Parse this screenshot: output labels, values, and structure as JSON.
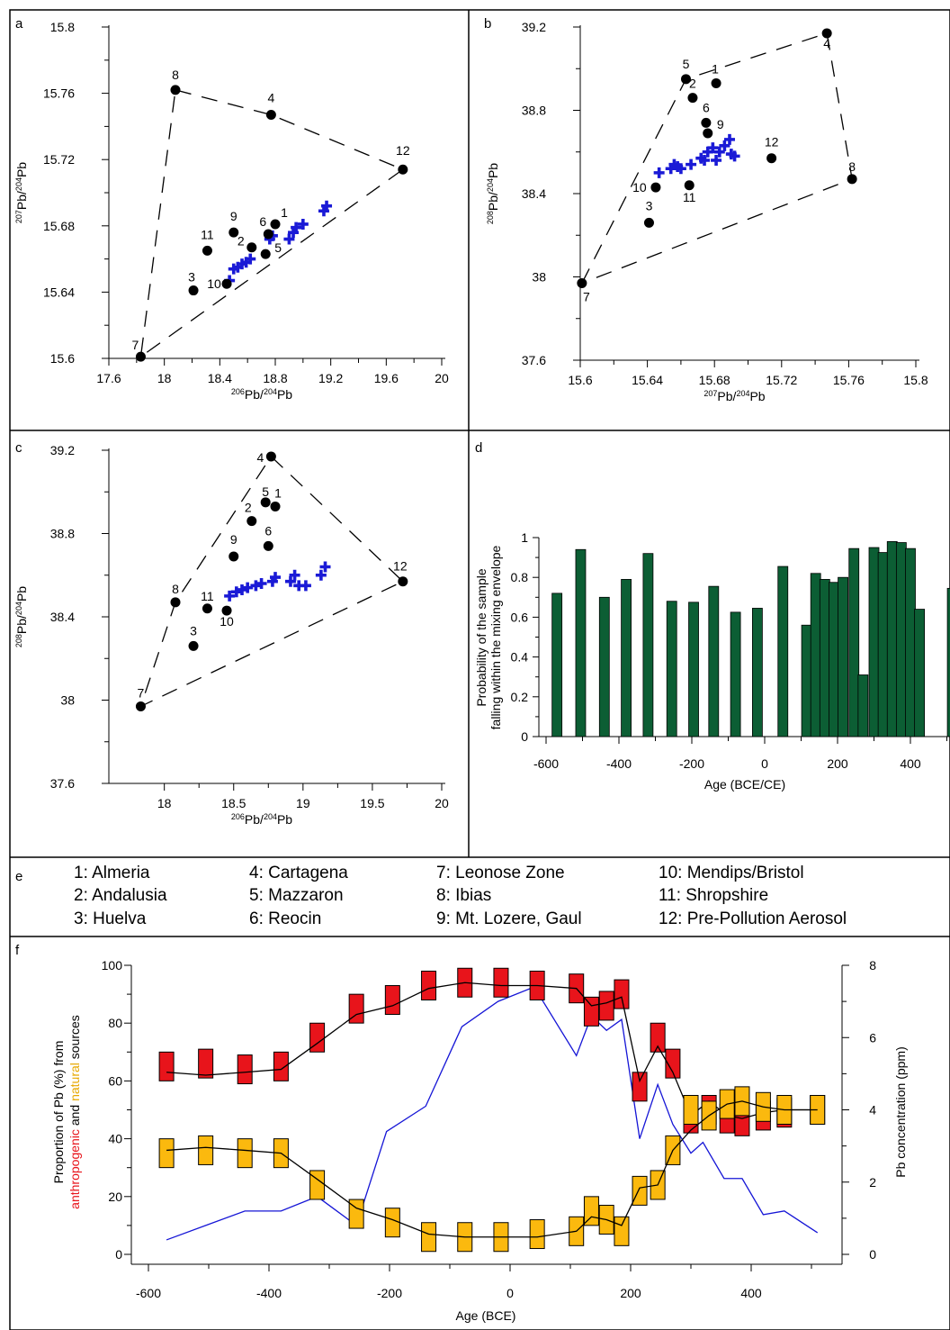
{
  "chart_data": [
    {
      "panel": "a",
      "type": "scatter",
      "xlabel": "206Pb/204Pb",
      "ylabel": "207Pb/204Pb",
      "xlim": [
        17.6,
        20
      ],
      "ylim": [
        15.6,
        15.8
      ],
      "xticks": [
        "17.6",
        "18",
        "18.4",
        "18.8",
        "19.2",
        "19.6",
        "20"
      ],
      "yticks": [
        "15.6",
        "15.64",
        "15.68",
        "15.72",
        "15.76",
        "15.8"
      ],
      "sources": [
        {
          "label": "1",
          "x": 18.8,
          "y": 15.681
        },
        {
          "label": "2",
          "x": 18.63,
          "y": 15.667
        },
        {
          "label": "3",
          "x": 18.21,
          "y": 15.641
        },
        {
          "label": "4",
          "x": 18.77,
          "y": 15.747
        },
        {
          "label": "5",
          "x": 18.73,
          "y": 15.663
        },
        {
          "label": "6",
          "x": 18.75,
          "y": 15.675
        },
        {
          "label": "7",
          "x": 17.83,
          "y": 15.601
        },
        {
          "label": "8",
          "x": 18.08,
          "y": 15.762
        },
        {
          "label": "9",
          "x": 18.5,
          "y": 15.676
        },
        {
          "label": "10",
          "x": 18.45,
          "y": 15.645
        },
        {
          "label": "11",
          "x": 18.31,
          "y": 15.665
        },
        {
          "label": "12",
          "x": 19.72,
          "y": 15.714
        }
      ],
      "samples": [
        {
          "x": 18.47,
          "y": 15.647
        },
        {
          "x": 18.5,
          "y": 15.654
        },
        {
          "x": 18.53,
          "y": 15.655
        },
        {
          "x": 18.56,
          "y": 15.657
        },
        {
          "x": 18.59,
          "y": 15.658
        },
        {
          "x": 18.62,
          "y": 15.66
        },
        {
          "x": 18.76,
          "y": 15.672
        },
        {
          "x": 18.78,
          "y": 15.674
        },
        {
          "x": 18.9,
          "y": 15.672
        },
        {
          "x": 18.93,
          "y": 15.676
        },
        {
          "x": 18.95,
          "y": 15.679
        },
        {
          "x": 19.0,
          "y": 15.681
        },
        {
          "x": 19.15,
          "y": 15.689
        },
        {
          "x": 19.17,
          "y": 15.692
        }
      ],
      "envelope": [
        "8",
        "4",
        "12",
        "7"
      ]
    },
    {
      "panel": "b",
      "type": "scatter",
      "xlabel": "207Pb/204Pb",
      "ylabel": "208Pb/204Pb",
      "xlim": [
        15.6,
        15.8
      ],
      "ylim": [
        37.6,
        39.2
      ],
      "xticks": [
        "15.6",
        "15.64",
        "15.68",
        "15.72",
        "15.76",
        "15.8"
      ],
      "yticks": [
        "37.6",
        "38",
        "38.4",
        "38.8",
        "39.2"
      ],
      "sources": [
        {
          "label": "1",
          "x": 15.681,
          "y": 38.93
        },
        {
          "label": "2",
          "x": 15.667,
          "y": 38.86
        },
        {
          "label": "3",
          "x": 15.641,
          "y": 38.26
        },
        {
          "label": "4",
          "x": 15.747,
          "y": 39.17
        },
        {
          "label": "5",
          "x": 15.663,
          "y": 38.95
        },
        {
          "label": "6",
          "x": 15.675,
          "y": 38.74
        },
        {
          "label": "7",
          "x": 15.601,
          "y": 37.97
        },
        {
          "label": "8",
          "x": 15.762,
          "y": 38.47
        },
        {
          "label": "9",
          "x": 15.676,
          "y": 38.69
        },
        {
          "label": "10",
          "x": 15.645,
          "y": 38.43
        },
        {
          "label": "11",
          "x": 15.665,
          "y": 38.44
        },
        {
          "label": "12",
          "x": 15.714,
          "y": 38.57
        }
      ],
      "samples": [
        {
          "x": 15.647,
          "y": 38.5
        },
        {
          "x": 15.654,
          "y": 38.52
        },
        {
          "x": 15.656,
          "y": 38.54
        },
        {
          "x": 15.658,
          "y": 38.53
        },
        {
          "x": 15.66,
          "y": 38.52
        },
        {
          "x": 15.666,
          "y": 38.54
        },
        {
          "x": 15.672,
          "y": 38.57
        },
        {
          "x": 15.674,
          "y": 38.56
        },
        {
          "x": 15.676,
          "y": 38.6
        },
        {
          "x": 15.679,
          "y": 38.62
        },
        {
          "x": 15.681,
          "y": 38.56
        },
        {
          "x": 15.683,
          "y": 38.6
        },
        {
          "x": 15.686,
          "y": 38.63
        },
        {
          "x": 15.689,
          "y": 38.66
        },
        {
          "x": 15.69,
          "y": 38.59
        },
        {
          "x": 15.692,
          "y": 38.58
        }
      ],
      "envelope": [
        "7",
        "5",
        "4",
        "8"
      ]
    },
    {
      "panel": "c",
      "type": "scatter",
      "xlabel": "206Pb/204Pb",
      "ylabel": "208Pb/204Pb",
      "xlim": [
        17.6,
        20
      ],
      "ylim": [
        37.6,
        39.2
      ],
      "xticks": [
        "18",
        "18.5",
        "19",
        "19.5",
        "20"
      ],
      "yticks": [
        "37.6",
        "38",
        "38.4",
        "38.8",
        "39.2"
      ],
      "sources": [
        {
          "label": "1",
          "x": 18.8,
          "y": 38.93
        },
        {
          "label": "2",
          "x": 18.63,
          "y": 38.86
        },
        {
          "label": "3",
          "x": 18.21,
          "y": 38.26
        },
        {
          "label": "4",
          "x": 18.77,
          "y": 39.17
        },
        {
          "label": "5",
          "x": 18.73,
          "y": 38.95
        },
        {
          "label": "6",
          "x": 18.75,
          "y": 38.74
        },
        {
          "label": "7",
          "x": 17.83,
          "y": 37.97
        },
        {
          "label": "8",
          "x": 18.08,
          "y": 38.47
        },
        {
          "label": "9",
          "x": 18.5,
          "y": 38.69
        },
        {
          "label": "10",
          "x": 18.45,
          "y": 38.43
        },
        {
          "label": "11",
          "x": 18.31,
          "y": 38.44
        },
        {
          "label": "12",
          "x": 19.72,
          "y": 38.57
        }
      ],
      "samples": [
        {
          "x": 18.47,
          "y": 38.5
        },
        {
          "x": 18.52,
          "y": 38.52
        },
        {
          "x": 18.56,
          "y": 38.53
        },
        {
          "x": 18.6,
          "y": 38.54
        },
        {
          "x": 18.66,
          "y": 38.55
        },
        {
          "x": 18.7,
          "y": 38.56
        },
        {
          "x": 18.78,
          "y": 38.57
        },
        {
          "x": 18.8,
          "y": 38.59
        },
        {
          "x": 18.91,
          "y": 38.57
        },
        {
          "x": 18.94,
          "y": 38.6
        },
        {
          "x": 18.97,
          "y": 38.55
        },
        {
          "x": 19.02,
          "y": 38.55
        },
        {
          "x": 19.13,
          "y": 38.6
        },
        {
          "x": 19.16,
          "y": 38.64
        }
      ],
      "envelope": [
        "4",
        "12",
        "7",
        "8"
      ]
    },
    {
      "panel": "d",
      "type": "bar",
      "xlabel": "Age (BCE/CE)",
      "ylabel": "Probability of the sample falling within the mixing envelope",
      "xlim": [
        -620,
        520
      ],
      "ylim": [
        0,
        1
      ],
      "xticks": [
        "-600",
        "-400",
        "-200",
        "0",
        "200",
        "400"
      ],
      "yticks": [
        "0",
        "0.2",
        "0.4",
        "0.6",
        "0.8",
        "1"
      ],
      "x": [
        -570,
        -505,
        -440,
        -380,
        -320,
        -255,
        -195,
        -140,
        -80,
        -20,
        50,
        115,
        140,
        165,
        190,
        215,
        245,
        270,
        300,
        325,
        350,
        375,
        400,
        425,
        515
      ],
      "values": [
        0.72,
        0.94,
        0.7,
        0.79,
        0.92,
        0.68,
        0.675,
        0.755,
        0.625,
        0.645,
        0.855,
        0.56,
        0.82,
        0.79,
        0.775,
        0.8,
        0.945,
        0.31,
        0.95,
        0.925,
        0.98,
        0.975,
        0.945,
        0.64,
        0.745
      ]
    },
    {
      "panel": "f",
      "type": "line",
      "xlabel": "Age (BCE)",
      "ylabel_left": [
        "Proportion of Pb (%) from",
        "anthropogenic",
        "and",
        "natural",
        "sources"
      ],
      "ylabel_right": "Pb concentration (ppm)",
      "xlim": [
        -620,
        540
      ],
      "ylim_left": [
        0,
        100
      ],
      "ylim_right": [
        0,
        8
      ],
      "xticks": [
        "-600",
        "-400",
        "-200",
        "0",
        "200",
        "400"
      ],
      "yticks_left": [
        "0",
        "20",
        "40",
        "60",
        "80",
        "100"
      ],
      "yticks_right": [
        "0",
        "2",
        "4",
        "6",
        "8"
      ],
      "x": [
        -570,
        -505,
        -440,
        -380,
        -320,
        -255,
        -195,
        -135,
        -75,
        -15,
        45,
        110,
        135,
        160,
        185,
        215,
        245,
        270,
        300,
        330,
        360,
        385,
        420,
        455,
        510
      ],
      "series": [
        {
          "name": "anthropogenic",
          "color": "#e8141b",
          "values": [
            65,
            66,
            64,
            65,
            75,
            85,
            88,
            93,
            94,
            94,
            93,
            92,
            84,
            86,
            90,
            58,
            75,
            66,
            47,
            50,
            47,
            46,
            48,
            49,
            50
          ],
          "line": [
            63,
            62,
            63,
            64,
            73,
            83,
            86,
            92,
            94,
            93,
            93,
            92,
            86,
            87,
            89,
            60,
            72,
            63,
            48,
            53,
            48,
            47,
            49,
            50,
            50
          ]
        },
        {
          "name": "natural",
          "color": "#fbb90e",
          "values": [
            35,
            36,
            35,
            35,
            24,
            14,
            11,
            6,
            6,
            6,
            7,
            8,
            15,
            12,
            8,
            22,
            24,
            36,
            50,
            48,
            52,
            53,
            51,
            50,
            50
          ],
          "line": [
            36,
            37,
            36,
            35,
            26,
            16,
            12,
            7,
            6,
            6,
            6,
            8,
            13,
            12,
            10,
            23,
            24,
            36,
            43,
            48,
            52,
            53,
            51,
            50,
            50
          ]
        },
        {
          "name": "Pb concentration (ppm)",
          "color": "#1515d6",
          "x": [
            -570,
            -505,
            -440,
            -380,
            -320,
            -255,
            -205,
            -140,
            -80,
            -20,
            40,
            110,
            135,
            160,
            185,
            215,
            245,
            270,
            300,
            320,
            355,
            385,
            420,
            455,
            510
          ],
          "values": [
            0.4,
            0.8,
            1.2,
            1.2,
            1.6,
            0.8,
            3.4,
            4.1,
            6.3,
            7.0,
            7.4,
            5.5,
            6.6,
            6.2,
            6.5,
            3.2,
            4.7,
            3.6,
            2.8,
            3.1,
            2.1,
            2.1,
            1.1,
            1.2,
            0.6
          ]
        }
      ]
    }
  ],
  "panels": {
    "a": "a",
    "b": "b",
    "c": "c",
    "d": "d",
    "e": "e",
    "f": "f"
  },
  "legend": [
    "1: Almeria",
    "2: Andalusia",
    "3: Huelva",
    "4: Cartagena",
    "5: Mazzaron",
    "6: Reocin",
    "7: Leonose Zone",
    "8: Ibias",
    "9: Mt. Lozere, Gaul",
    "10: Mendips/Bristol",
    "11: Shropshire",
    "12: Pre-Pollution Aerosol"
  ],
  "colors": {
    "source_point": "#000000",
    "sample": "#1a1ad6",
    "bar": "#0c5e34",
    "anthro": "#e8141b",
    "natural": "#fbb90e",
    "pb_line": "#1515d6"
  }
}
